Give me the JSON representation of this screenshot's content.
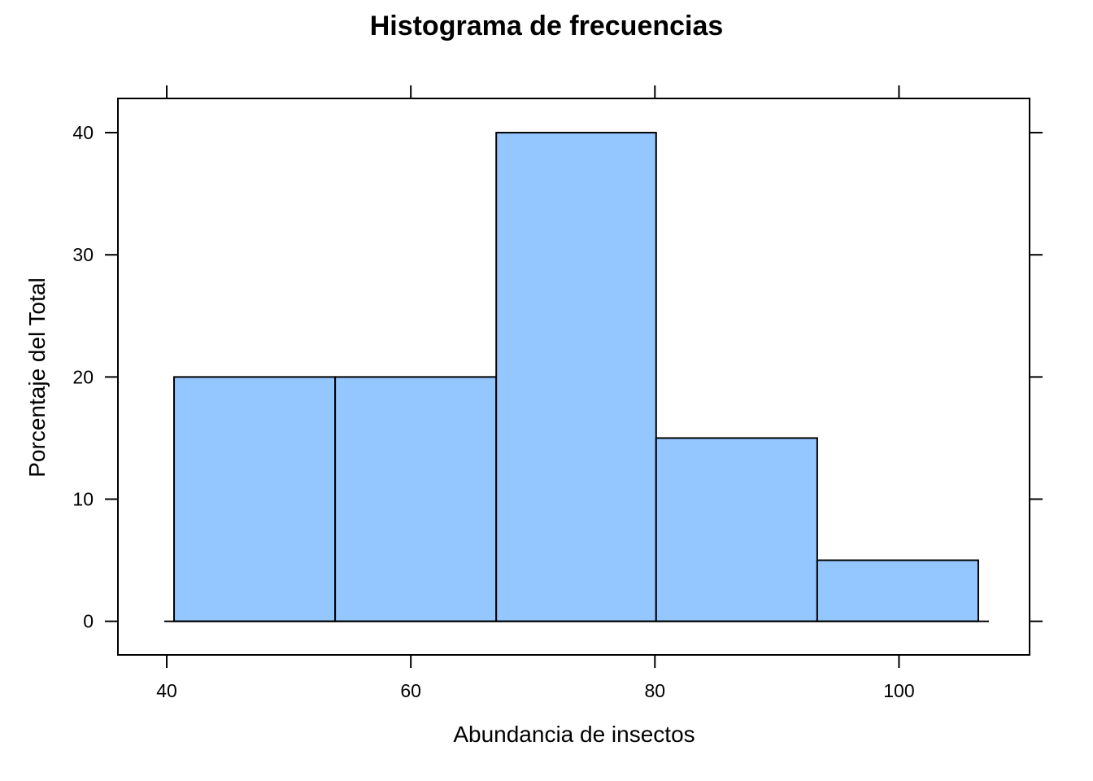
{
  "chart_data": {
    "type": "bar",
    "title": "Histograma de frecuencias",
    "xlabel": "Abundancia de insectos",
    "ylabel": "Porcentaje del Total",
    "bins": [
      {
        "x0": 40.6,
        "x1": 53.8,
        "value": 20
      },
      {
        "x0": 53.8,
        "x1": 67.0,
        "value": 20
      },
      {
        "x0": 67.0,
        "x1": 80.1,
        "value": 40
      },
      {
        "x0": 80.1,
        "x1": 93.3,
        "value": 15
      },
      {
        "x0": 93.3,
        "x1": 106.5,
        "value": 5
      }
    ],
    "xticks": [
      40,
      60,
      80,
      100
    ],
    "xtick_labels": [
      "40",
      "60",
      "80",
      "100"
    ],
    "yticks": [
      0,
      10,
      20,
      30,
      40
    ],
    "ytick_labels": [
      "0",
      "10",
      "20",
      "30",
      "40"
    ],
    "xlim": [
      36,
      110.7
    ],
    "ylim": [
      -2.75,
      42.8
    ],
    "grid": false,
    "bar_color": "#94c6ff"
  }
}
